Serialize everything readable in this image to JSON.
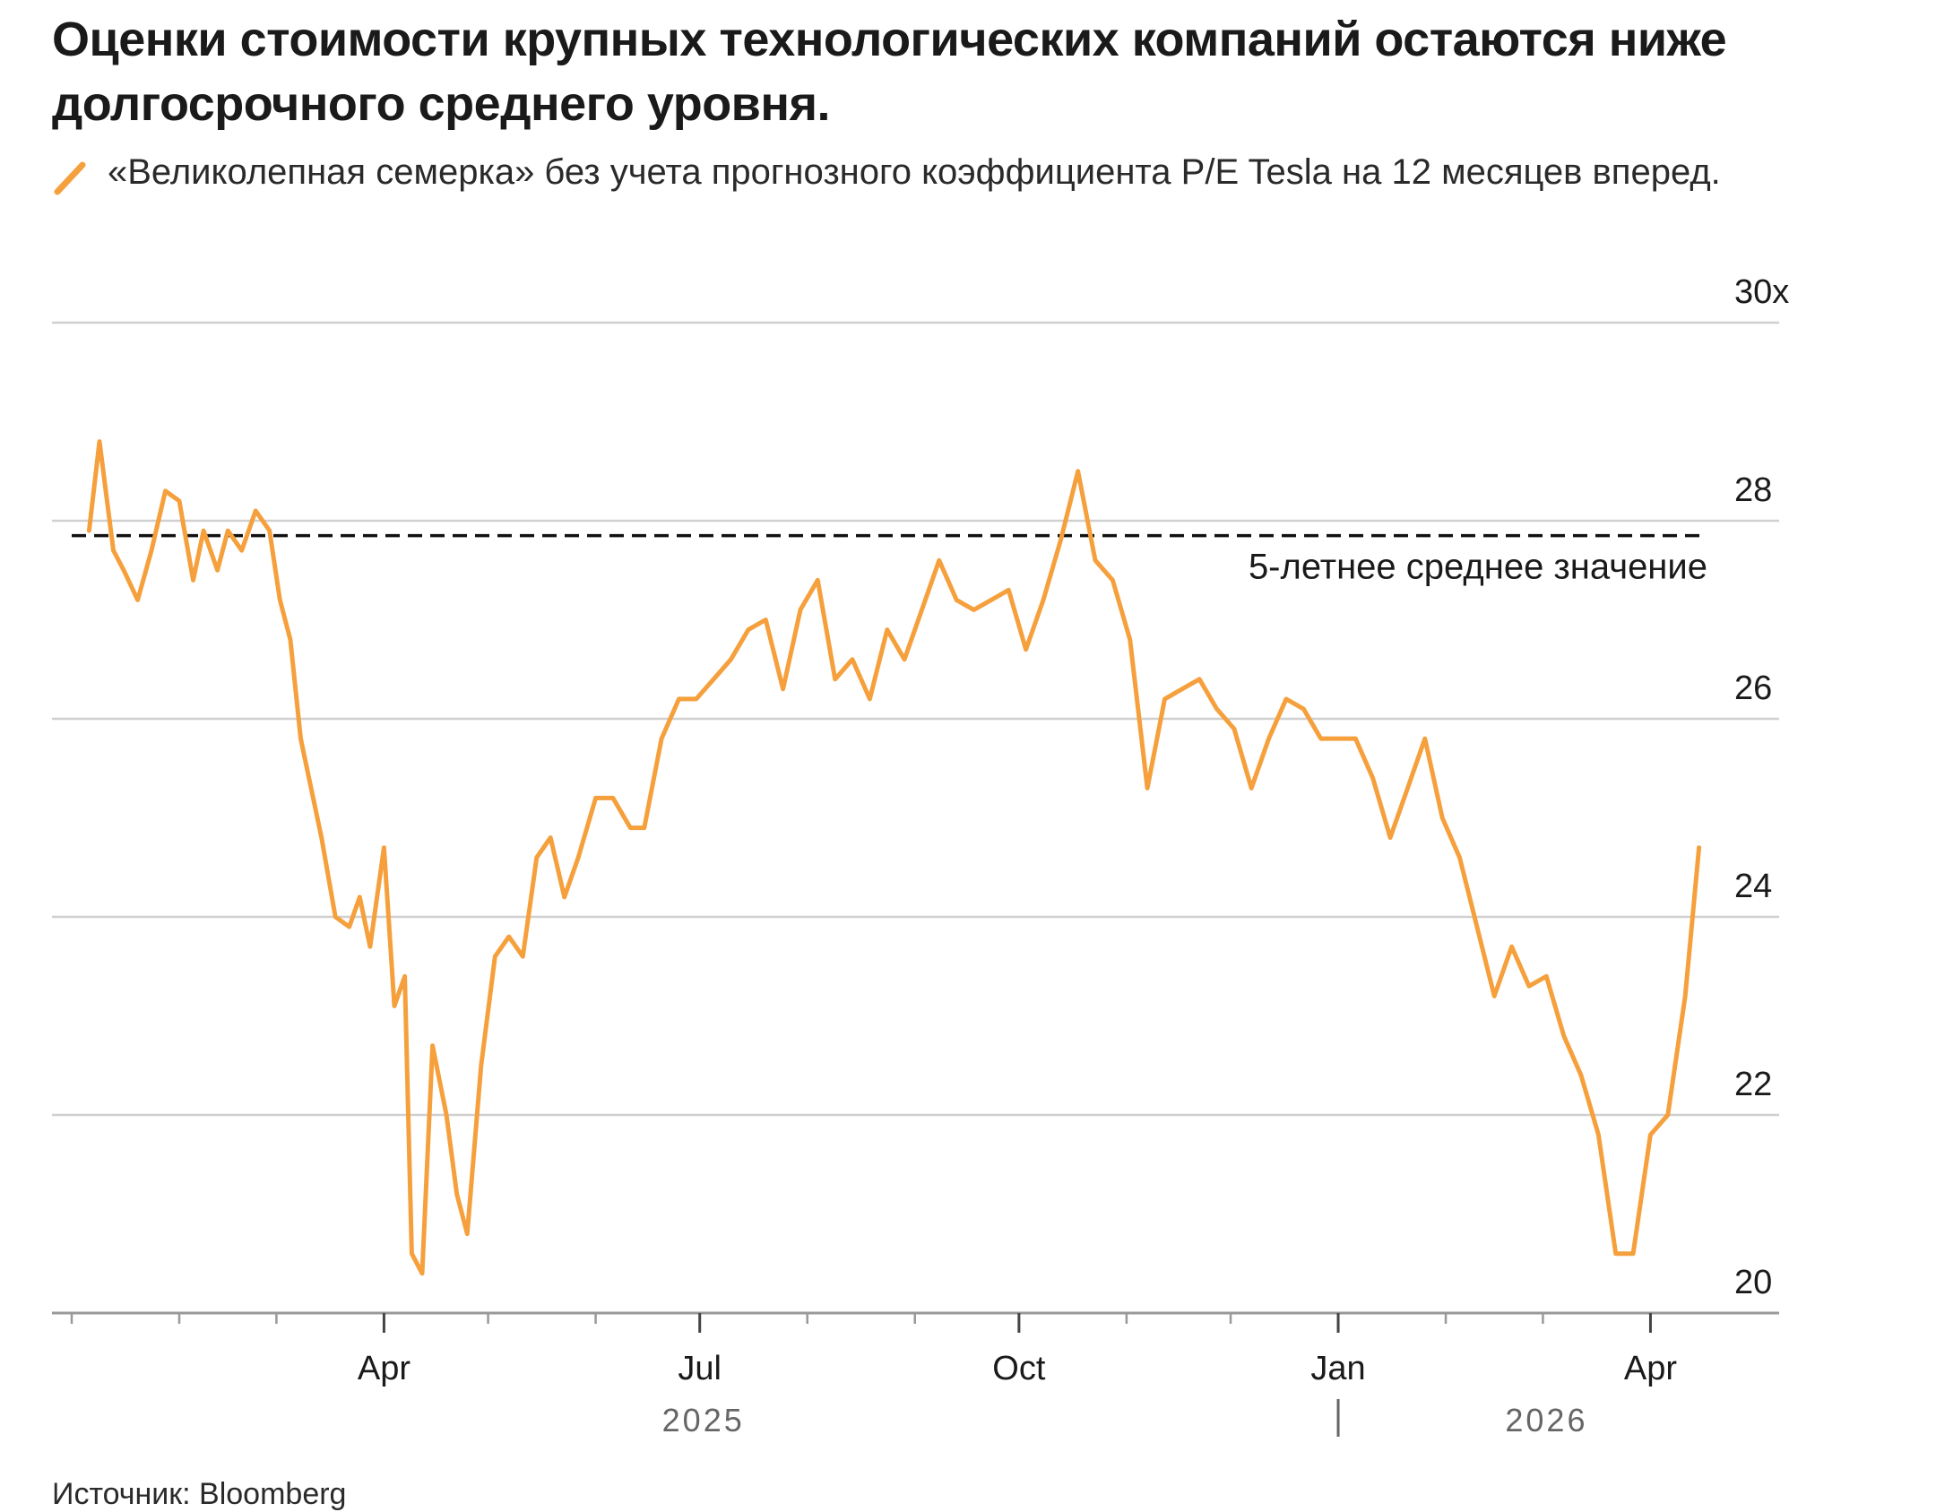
{
  "header": {
    "title": "Оценки стоимости крупных технологических компаний остаются ниже долгосрочного среднего уровня."
  },
  "legend": {
    "text": "«Великолепная семерка» без учета прогнозного коэффициента P/E Tesla на 12 месяцев вперед."
  },
  "footer": {
    "source": "Источник: Bloomberg"
  },
  "colors": {
    "series": "#F5A03C",
    "grid": "#d0d0d0",
    "axis": "#999999",
    "text": "#1a1a1a"
  },
  "chart_data": {
    "type": "line",
    "title": "Оценки стоимости крупных технологических компаний остаются ниже долгосрочного среднего уровня.",
    "xlabel": "",
    "ylabel": "",
    "ylim": [
      20,
      30
    ],
    "xlim": [
      "2025-01-01",
      "2026-04-30"
    ],
    "y_ticks": [
      {
        "value": 30,
        "label": "30x"
      },
      {
        "value": 28,
        "label": "28"
      },
      {
        "value": 26,
        "label": "26"
      },
      {
        "value": 24,
        "label": "24"
      },
      {
        "value": 22,
        "label": "22"
      },
      {
        "value": 20,
        "label": "20"
      }
    ],
    "x_ticks": [
      {
        "date": "2025-04-01",
        "label": "Apr"
      },
      {
        "date": "2025-07-01",
        "label": "Jul"
      },
      {
        "date": "2025-10-01",
        "label": "Oct"
      },
      {
        "date": "2026-01-01",
        "label": "Jan"
      },
      {
        "date": "2026-04-01",
        "label": "Apr"
      }
    ],
    "x_minor_ticks": [
      "2025-01-01",
      "2025-02-01",
      "2025-03-01",
      "2025-05-01",
      "2025-06-01",
      "2025-08-01",
      "2025-09-01",
      "2025-11-01",
      "2025-12-01",
      "2026-02-01",
      "2026-03-01"
    ],
    "year_labels": [
      {
        "date": "2025-07-01",
        "label": "2025"
      },
      {
        "date": "2026-03-01",
        "label": "2026"
      }
    ],
    "year_divider": "2026-01-01",
    "grid": true,
    "legend": "top-left",
    "reference_line": {
      "value": 27.85,
      "label": "5-летнее среднее значение",
      "style": "dashed"
    },
    "series": [
      {
        "name": "«Великолепная семерка» без учета прогнозного коэффициента P/E Tesla на 12 месяцев вперед.",
        "x": [
          "2025-01-06",
          "2025-01-09",
          "2025-01-13",
          "2025-01-16",
          "2025-01-20",
          "2025-01-24",
          "2025-01-28",
          "2025-02-01",
          "2025-02-05",
          "2025-02-08",
          "2025-02-12",
          "2025-02-15",
          "2025-02-19",
          "2025-02-23",
          "2025-02-27",
          "2025-03-02",
          "2025-03-05",
          "2025-03-08",
          "2025-03-11",
          "2025-03-14",
          "2025-03-18",
          "2025-03-22",
          "2025-03-25",
          "2025-03-28",
          "2025-04-01",
          "2025-04-04",
          "2025-04-07",
          "2025-04-09",
          "2025-04-12",
          "2025-04-15",
          "2025-04-19",
          "2025-04-22",
          "2025-04-25",
          "2025-04-29",
          "2025-05-03",
          "2025-05-07",
          "2025-05-11",
          "2025-05-15",
          "2025-05-19",
          "2025-05-23",
          "2025-05-27",
          "2025-06-01",
          "2025-06-06",
          "2025-06-11",
          "2025-06-15",
          "2025-06-20",
          "2025-06-25",
          "2025-06-30",
          "2025-07-05",
          "2025-07-10",
          "2025-07-15",
          "2025-07-20",
          "2025-07-25",
          "2025-07-30",
          "2025-08-04",
          "2025-08-09",
          "2025-08-14",
          "2025-08-19",
          "2025-08-24",
          "2025-08-29",
          "2025-09-03",
          "2025-09-08",
          "2025-09-13",
          "2025-09-18",
          "2025-09-23",
          "2025-09-28",
          "2025-10-03",
          "2025-10-08",
          "2025-10-13",
          "2025-10-18",
          "2025-10-23",
          "2025-10-28",
          "2025-11-02",
          "2025-11-07",
          "2025-11-12",
          "2025-11-17",
          "2025-11-22",
          "2025-11-27",
          "2025-12-02",
          "2025-12-07",
          "2025-12-12",
          "2025-12-17",
          "2025-12-22",
          "2025-12-27",
          "2026-01-01",
          "2026-01-06",
          "2026-01-11",
          "2026-01-16",
          "2026-01-21",
          "2026-01-26",
          "2026-01-31",
          "2026-02-05",
          "2026-02-10",
          "2026-02-15",
          "2026-02-20",
          "2026-02-25",
          "2026-03-02",
          "2026-03-07",
          "2026-03-12",
          "2026-03-17",
          "2026-03-22",
          "2026-03-27",
          "2026-04-01",
          "2026-04-06",
          "2026-04-11",
          "2026-04-15"
        ],
        "values": [
          27.9,
          28.8,
          27.7,
          27.5,
          27.2,
          27.7,
          28.3,
          28.2,
          27.4,
          27.9,
          27.5,
          27.9,
          27.7,
          28.1,
          27.9,
          27.2,
          26.8,
          25.8,
          25.3,
          24.8,
          24.0,
          23.9,
          24.2,
          23.7,
          24.7,
          23.1,
          23.4,
          20.6,
          20.4,
          22.7,
          22.0,
          21.2,
          20.8,
          22.5,
          23.6,
          23.8,
          23.6,
          24.6,
          24.8,
          24.2,
          24.6,
          25.2,
          25.2,
          24.9,
          24.9,
          25.8,
          26.2,
          26.2,
          26.4,
          26.6,
          26.9,
          27.0,
          26.3,
          27.1,
          27.4,
          26.4,
          26.6,
          26.2,
          26.9,
          26.6,
          27.1,
          27.6,
          27.2,
          27.1,
          27.2,
          27.3,
          26.7,
          27.2,
          27.8,
          28.5,
          27.6,
          27.4,
          26.8,
          25.3,
          26.2,
          26.3,
          26.4,
          26.1,
          25.9,
          25.3,
          25.8,
          26.2,
          26.1,
          25.8,
          25.8,
          25.8,
          25.4,
          24.8,
          25.3,
          25.8,
          25.0,
          24.6,
          23.9,
          23.2,
          23.7,
          23.3,
          23.4,
          22.8,
          22.4,
          21.8,
          20.6,
          20.6,
          21.8,
          22.0,
          23.2,
          24.7
        ]
      }
    ]
  }
}
